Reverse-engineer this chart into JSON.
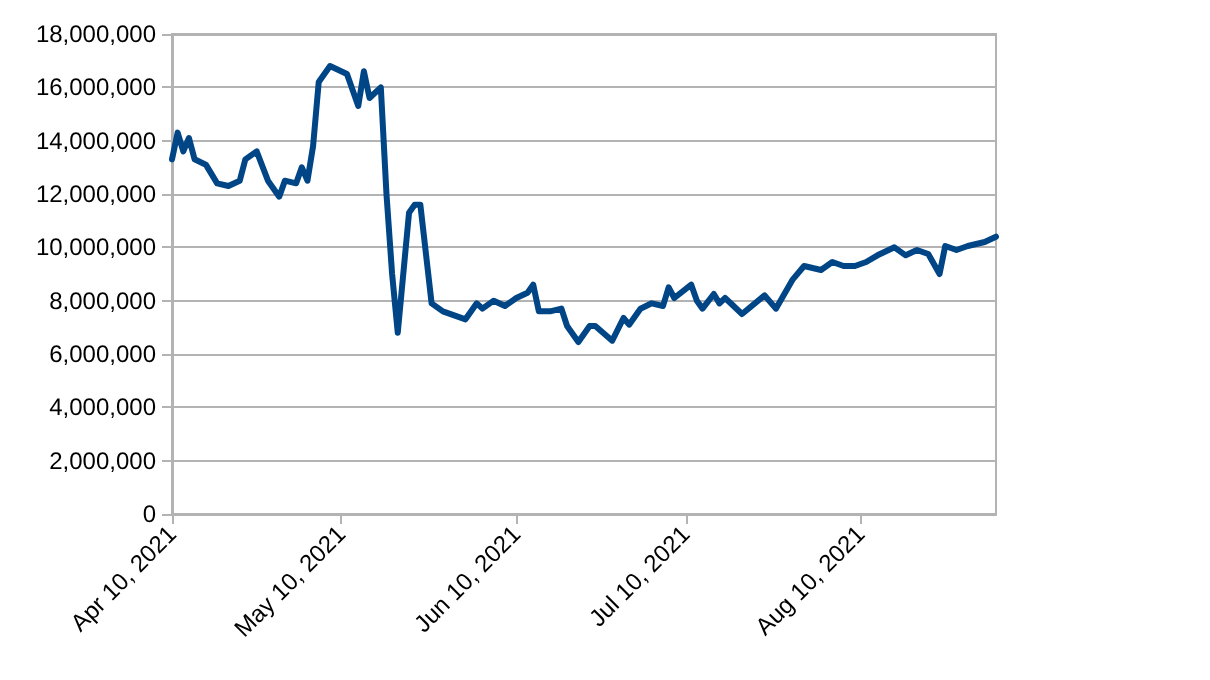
{
  "chart_data": {
    "type": "line",
    "x": [
      "2021-04-10",
      "2021-04-11",
      "2021-04-12",
      "2021-04-13",
      "2021-04-14",
      "2021-04-16",
      "2021-04-18",
      "2021-04-20",
      "2021-04-22",
      "2021-04-23",
      "2021-04-25",
      "2021-04-27",
      "2021-04-29",
      "2021-04-30",
      "2021-05-02",
      "2021-05-03",
      "2021-05-04",
      "2021-05-05",
      "2021-05-06",
      "2021-05-08",
      "2021-05-11",
      "2021-05-13",
      "2021-05-14",
      "2021-05-15",
      "2021-05-17",
      "2021-05-18",
      "2021-05-19",
      "2021-05-20",
      "2021-05-22",
      "2021-05-23",
      "2021-05-24",
      "2021-05-26",
      "2021-05-28",
      "2021-06-01",
      "2021-06-03",
      "2021-06-04",
      "2021-06-06",
      "2021-06-08",
      "2021-06-10",
      "2021-06-12",
      "2021-06-13",
      "2021-06-14",
      "2021-06-16",
      "2021-06-18",
      "2021-06-19",
      "2021-06-21",
      "2021-06-23",
      "2021-06-24",
      "2021-06-27",
      "2021-06-29",
      "2021-06-30",
      "2021-07-02",
      "2021-07-04",
      "2021-07-06",
      "2021-07-07",
      "2021-07-08",
      "2021-07-11",
      "2021-07-12",
      "2021-07-13",
      "2021-07-15",
      "2021-07-16",
      "2021-07-17",
      "2021-07-20",
      "2021-07-24",
      "2021-07-26",
      "2021-07-29",
      "2021-07-31",
      "2021-08-03",
      "2021-08-05",
      "2021-08-07",
      "2021-08-09",
      "2021-08-11",
      "2021-08-13",
      "2021-08-16",
      "2021-08-18",
      "2021-08-20",
      "2021-08-22",
      "2021-08-24",
      "2021-08-25",
      "2021-08-27",
      "2021-08-29",
      "2021-09-01",
      "2021-09-03"
    ],
    "series": [
      {
        "color": "#004586",
        "values": [
          13300000,
          14300000,
          13600000,
          14100000,
          13300000,
          13100000,
          12400000,
          12300000,
          12500000,
          13300000,
          13600000,
          12500000,
          11900000,
          12500000,
          12400000,
          13000000,
          12500000,
          13800000,
          16200000,
          16800000,
          16500000,
          15300000,
          16600000,
          15600000,
          16000000,
          12000000,
          9000000,
          6800000,
          11300000,
          11600000,
          11600000,
          7900000,
          7600000,
          7300000,
          7900000,
          7700000,
          8000000,
          7800000,
          8100000,
          8300000,
          8600000,
          7600000,
          7600000,
          7700000,
          7050000,
          6450000,
          7050000,
          7050000,
          6500000,
          7350000,
          7100000,
          7700000,
          7900000,
          7800000,
          8500000,
          8100000,
          8600000,
          8000000,
          7700000,
          8250000,
          7900000,
          8100000,
          7500000,
          8200000,
          7700000,
          8800000,
          9300000,
          9150000,
          9450000,
          9300000,
          9300000,
          9450000,
          9700000,
          10000000,
          9700000,
          9900000,
          9750000,
          9000000,
          10050000,
          9900000,
          10050000,
          10200000,
          10400000
        ]
      }
    ],
    "xlim": [
      "2021-04-10",
      "2021-09-03"
    ],
    "xticks": [
      {
        "value": "2021-04-10",
        "label": "Apr 10, 2021"
      },
      {
        "value": "2021-05-10",
        "label": "May 10, 2021"
      },
      {
        "value": "2021-06-10",
        "label": "Jun 10, 2021"
      },
      {
        "value": "2021-07-10",
        "label": "Jul 10, 2021"
      },
      {
        "value": "2021-08-10",
        "label": "Aug 10, 2021"
      }
    ],
    "ylim": [
      0,
      18000000
    ],
    "yticks": [
      0,
      {
        "value": 2000000,
        "label": "2,000,000"
      },
      {
        "value": 4000000,
        "label": "4,000,000"
      },
      {
        "value": 6000000,
        "label": "6,000,000"
      },
      {
        "value": 8000000,
        "label": "8,000,000"
      },
      {
        "value": 10000000,
        "label": "10,000,000"
      },
      {
        "value": 12000000,
        "label": "12,000,000"
      },
      {
        "value": 14000000,
        "label": "14,000,000"
      },
      {
        "value": 16000000,
        "label": "16,000,000"
      },
      {
        "value": 18000000,
        "label": "18,000,000"
      }
    ],
    "grid": "y",
    "marker": "none",
    "line_style": "solid"
  }
}
